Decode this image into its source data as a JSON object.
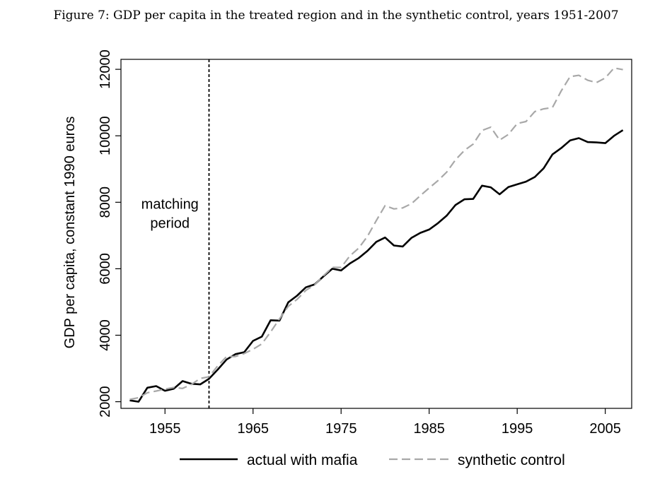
{
  "figure_caption": "Figure 7: GDP per capita in the treated region and in the synthetic control, years 1951-2007",
  "chart_data": {
    "type": "line",
    "ylabel": "GDP per capita, constant 1990 euros",
    "xlim": [
      1950,
      2008
    ],
    "ylim": [
      1800,
      12300
    ],
    "xticks": [
      1955,
      1965,
      1975,
      1985,
      1995,
      2005
    ],
    "xtick_labels": [
      "1955",
      "1965",
      "1975",
      "1985",
      "1995",
      "2005"
    ],
    "yticks": [
      2000,
      4000,
      6000,
      8000,
      10000,
      12000
    ],
    "ytick_labels": [
      "2000",
      "4000",
      "6000",
      "8000",
      "10000",
      "12000"
    ],
    "vline": {
      "x": 1960,
      "style": "dashed"
    },
    "annotation": {
      "lines": [
        "matching",
        "period"
      ],
      "x": 1955,
      "y": 7800
    },
    "legend_position": "bottom",
    "x": [
      1951,
      1952,
      1953,
      1954,
      1955,
      1956,
      1957,
      1958,
      1959,
      1960,
      1961,
      1962,
      1963,
      1964,
      1965,
      1966,
      1967,
      1968,
      1969,
      1970,
      1971,
      1972,
      1973,
      1974,
      1975,
      1976,
      1977,
      1978,
      1979,
      1980,
      1981,
      1982,
      1983,
      1984,
      1985,
      1986,
      1987,
      1988,
      1989,
      1990,
      1991,
      1992,
      1993,
      1994,
      1995,
      1996,
      1997,
      1998,
      1999,
      2000,
      2001,
      2002,
      2003,
      2004,
      2005,
      2006,
      2007
    ],
    "series": [
      {
        "name": "actual with mafia",
        "color": "#000000",
        "dash": "solid",
        "values": [
          2040,
          2000,
          2420,
          2470,
          2330,
          2390,
          2620,
          2540,
          2520,
          2690,
          2970,
          3270,
          3430,
          3490,
          3830,
          3960,
          4450,
          4440,
          4990,
          5190,
          5440,
          5530,
          5770,
          6000,
          5950,
          6160,
          6320,
          6540,
          6810,
          6940,
          6700,
          6670,
          6930,
          7080,
          7180,
          7370,
          7600,
          7920,
          8090,
          8100,
          8500,
          8450,
          8240,
          8460,
          8540,
          8620,
          8760,
          9020,
          9440,
          9630,
          9860,
          9930,
          9810,
          9800,
          9780,
          10000,
          10170
        ]
      },
      {
        "name": "synthetic control",
        "color": "#a8a8a8",
        "dash": "dashed",
        "values": [
          2070,
          2120,
          2270,
          2320,
          2380,
          2430,
          2400,
          2520,
          2700,
          2750,
          3080,
          3360,
          3360,
          3450,
          3580,
          3740,
          4100,
          4490,
          4870,
          5080,
          5350,
          5520,
          5790,
          6040,
          6040,
          6390,
          6620,
          6980,
          7450,
          7900,
          7800,
          7830,
          7960,
          8200,
          8430,
          8650,
          8910,
          9280,
          9560,
          9750,
          10160,
          10260,
          9870,
          10040,
          10370,
          10430,
          10730,
          10810,
          10850,
          11350,
          11780,
          11820,
          11670,
          11600,
          11740,
          12040,
          11990
        ]
      }
    ]
  }
}
